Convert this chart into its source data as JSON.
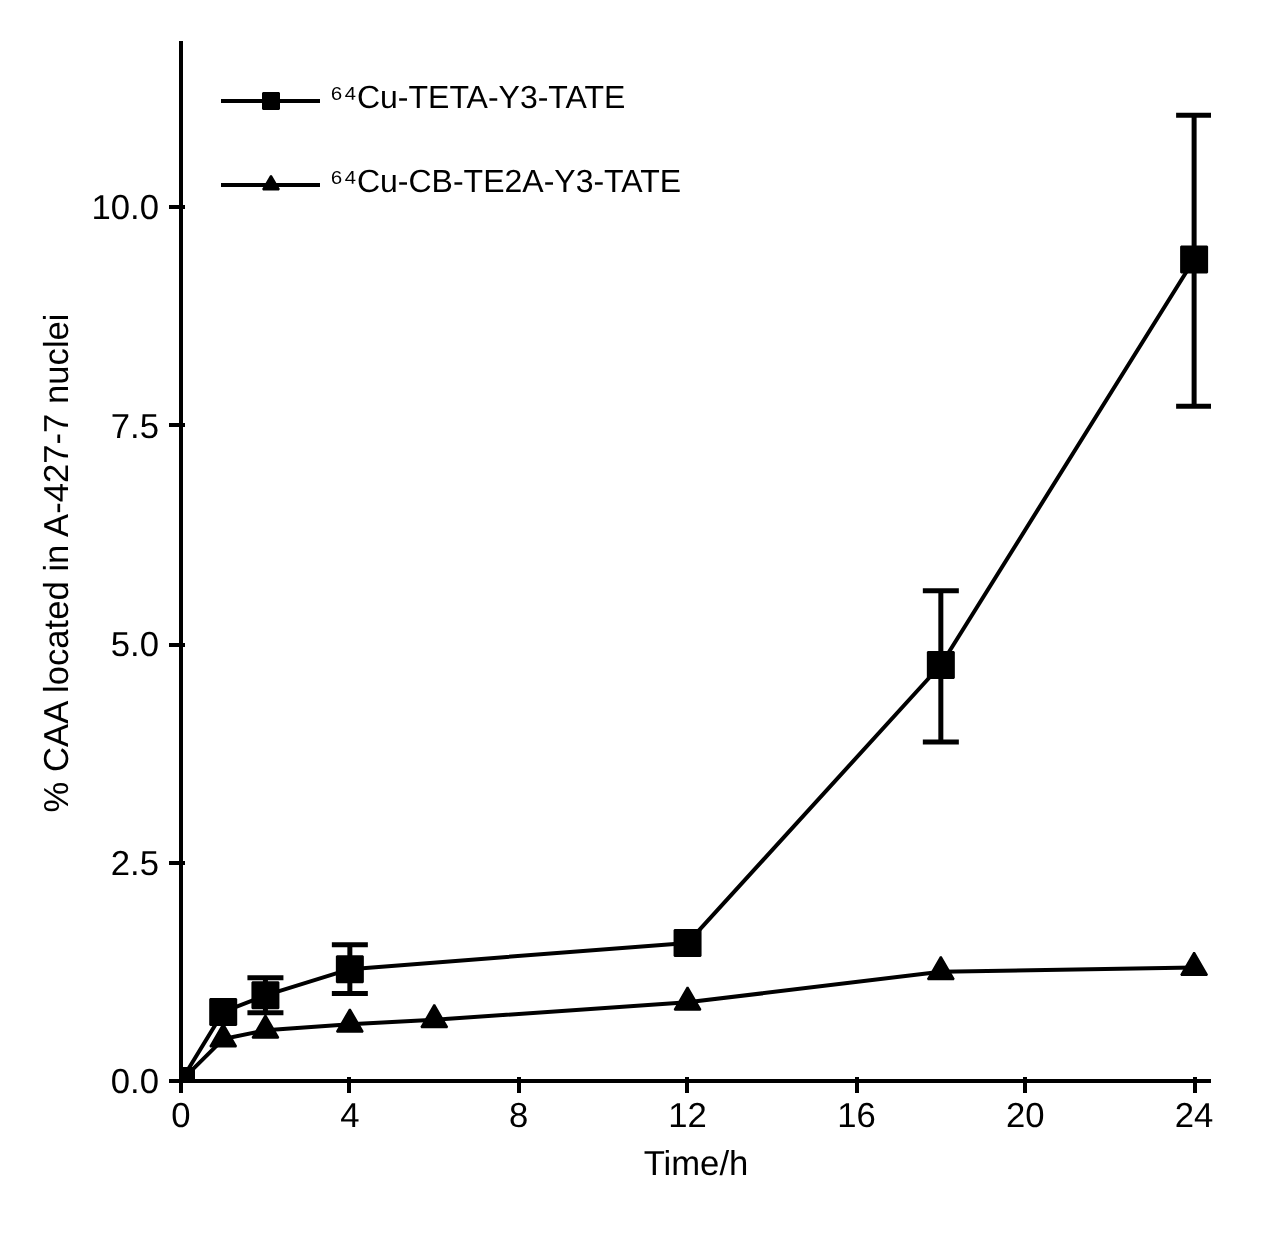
{
  "chart_data": {
    "type": "line",
    "xlabel": "Time/h",
    "ylabel": "% CAA located in A-427-7 nuclei",
    "xlim": [
      0,
      24.4
    ],
    "ylim": [
      0,
      11.9
    ],
    "xticks": [
      0,
      4,
      8,
      12,
      16,
      20,
      24
    ],
    "yticks": [
      {
        "value": 0,
        "label": "0.0"
      },
      {
        "value": 2.5,
        "label": "2.5"
      },
      {
        "value": 5,
        "label": "5.0"
      },
      {
        "value": 7.5,
        "label": "7.5"
      },
      {
        "value": 10,
        "label": "10.0"
      }
    ],
    "grid": false,
    "legend": "top left",
    "line_style": "solid",
    "series": [
      {
        "name": "⁶⁴Cu-TETA-Y3-TATE",
        "color": "#000000",
        "marker": "square",
        "x": [
          0,
          1,
          2,
          4,
          12,
          18,
          24
        ],
        "values": [
          0,
          0.79,
          0.98,
          1.28,
          1.58,
          4.76,
          9.4
        ],
        "errors": [
          null,
          null,
          0.2,
          0.28,
          null,
          [
            3.88,
            5.61
          ],
          [
            7.72,
            11.05
          ]
        ]
      },
      {
        "name": "⁶⁴Cu-CB-TE2A-Y3-TATE",
        "color": "#000000",
        "marker": "triangle",
        "x": [
          0,
          1,
          2,
          4,
          6,
          12,
          18,
          24
        ],
        "values": [
          0,
          0.48,
          0.58,
          0.65,
          0.7,
          0.9,
          1.25,
          1.3
        ]
      }
    ]
  }
}
